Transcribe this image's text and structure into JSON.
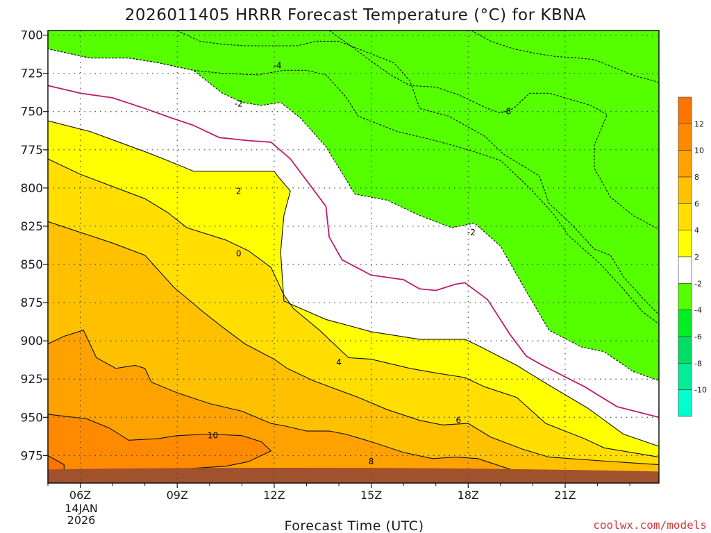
{
  "title": "2026011405 HRRR Forecast Temperature (°C) for KBNA",
  "credit": "coolwx.com/models",
  "chart_data": {
    "type": "filled-contour",
    "title": "2026011405 HRRR Forecast Temperature (°C) for KBNA",
    "xlabel": "Forecast Time (UTC)",
    "ylabel": "",
    "x_ticks": [
      "06Z",
      "09Z",
      "12Z",
      "15Z",
      "18Z",
      "21Z"
    ],
    "x_tick_hours": [
      6,
      9,
      12,
      15,
      18,
      21
    ],
    "x_date_lines": [
      "14JAN",
      "2026"
    ],
    "xlim": [
      5,
      23.9
    ],
    "y_ticks": [
      700,
      725,
      750,
      775,
      800,
      825,
      850,
      875,
      900,
      925,
      950,
      975
    ],
    "ylim": [
      993,
      697
    ],
    "surface_pressure": 985,
    "grid": true,
    "colorbar": {
      "labels": [
        "12",
        "10",
        "8",
        "6",
        "4",
        "2",
        "-2",
        "-4",
        "-6",
        "-8",
        "-10"
      ],
      "bands": [
        {
          "lo": 12,
          "hi": 14,
          "color": "#ff7300"
        },
        {
          "lo": 10,
          "hi": 12,
          "color": "#ff8a00"
        },
        {
          "lo": 8,
          "hi": 10,
          "color": "#ffa200"
        },
        {
          "lo": 6,
          "hi": 8,
          "color": "#ffc000"
        },
        {
          "lo": 4,
          "hi": 6,
          "color": "#ffde00"
        },
        {
          "lo": 2,
          "hi": 4,
          "color": "#ffff00"
        },
        {
          "lo": -2,
          "hi": 2,
          "color": "#ffffff"
        },
        {
          "lo": -4,
          "hi": -2,
          "color": "#55ff00"
        },
        {
          "lo": -6,
          "hi": -4,
          "color": "#00ee22"
        },
        {
          "lo": -8,
          "hi": -6,
          "color": "#00dd66"
        },
        {
          "lo": -10,
          "hi": -8,
          "color": "#00ee99"
        },
        {
          "lo": -12,
          "hi": -10,
          "color": "#00ffcc"
        }
      ]
    },
    "contours": [
      {
        "level": -10,
        "color": "#00ffcc",
        "points": [
          [
            18.1,
            697
          ],
          [
            18.7,
            704
          ],
          [
            19.4,
            709
          ],
          [
            20.1,
            712
          ],
          [
            20.7,
            714
          ],
          [
            21.4,
            715
          ],
          [
            21.9,
            716
          ],
          [
            22.6,
            722
          ],
          [
            23.2,
            727
          ],
          [
            23.6,
            729
          ],
          [
            23.9,
            731
          ],
          [
            23.9,
            697
          ]
        ]
      },
      {
        "level": -8,
        "color": "#00ee99",
        "points": [
          [
            13.7,
            697
          ],
          [
            14.3,
            706
          ],
          [
            15,
            717
          ],
          [
            15.6,
            726
          ],
          [
            16.2,
            733
          ],
          [
            17,
            734
          ],
          [
            17.7,
            739
          ],
          [
            18.6,
            748
          ],
          [
            19,
            751
          ],
          [
            19.4,
            748
          ],
          [
            19.9,
            738
          ],
          [
            20.5,
            738
          ],
          [
            21.3,
            743
          ],
          [
            21.8,
            746
          ],
          [
            22.3,
            752
          ],
          [
            21.9,
            772
          ],
          [
            21.9,
            787
          ],
          [
            22.4,
            806
          ],
          [
            23.1,
            818
          ],
          [
            23.9,
            827
          ],
          [
            23.9,
            697
          ]
        ]
      },
      {
        "level": -6,
        "color": "#00dd66",
        "points": [
          [
            9,
            697
          ],
          [
            9.7,
            704
          ],
          [
            10.4,
            706
          ],
          [
            11.1,
            707
          ],
          [
            11.9,
            707
          ],
          [
            12.7,
            707
          ],
          [
            13.3,
            704
          ],
          [
            14,
            704
          ],
          [
            14.6,
            709
          ],
          [
            15.7,
            718
          ],
          [
            16.2,
            730
          ],
          [
            16.5,
            748
          ],
          [
            17.4,
            753
          ],
          [
            18.5,
            766
          ],
          [
            19.1,
            778
          ],
          [
            20.2,
            792
          ],
          [
            20.5,
            810
          ],
          [
            21.3,
            826
          ],
          [
            21.9,
            840
          ],
          [
            22.4,
            844
          ],
          [
            22.8,
            858
          ],
          [
            23.4,
            872
          ],
          [
            23.9,
            883
          ],
          [
            23.9,
            697
          ]
        ]
      },
      {
        "level": -4,
        "color": "#00ee22",
        "points": [
          [
            5,
            697
          ],
          [
            5,
            709
          ],
          [
            6.3,
            715
          ],
          [
            7.5,
            715
          ],
          [
            8.4,
            718
          ],
          [
            9.5,
            723
          ],
          [
            10.4,
            725
          ],
          [
            11.5,
            726
          ],
          [
            12.3,
            723
          ],
          [
            13,
            723
          ],
          [
            13.6,
            726
          ],
          [
            14.2,
            740
          ],
          [
            14.6,
            753
          ],
          [
            15.8,
            763
          ],
          [
            16.8,
            768
          ],
          [
            17.5,
            772
          ],
          [
            18,
            775
          ],
          [
            19,
            782
          ],
          [
            19.9,
            800
          ],
          [
            20.6,
            816
          ],
          [
            21.1,
            831
          ],
          [
            22.1,
            850
          ],
          [
            22.8,
            866
          ],
          [
            23.4,
            881
          ],
          [
            23.9,
            889
          ],
          [
            23.9,
            697
          ]
        ]
      },
      {
        "level": -2,
        "color": "#55ff00",
        "points": [
          [
            5,
            697
          ],
          [
            5,
            709
          ],
          [
            6.3,
            715
          ],
          [
            7.5,
            715
          ],
          [
            8.4,
            718
          ],
          [
            9.5,
            723
          ],
          [
            10.4,
            738
          ],
          [
            11,
            744
          ],
          [
            11.6,
            746
          ],
          [
            12.2,
            744
          ],
          [
            12.8,
            754
          ],
          [
            13.6,
            773
          ],
          [
            14.5,
            804
          ],
          [
            15.5,
            808
          ],
          [
            16.5,
            818
          ],
          [
            17.5,
            826
          ],
          [
            18.2,
            823
          ],
          [
            19,
            838
          ],
          [
            19.7,
            864
          ],
          [
            20.5,
            893
          ],
          [
            21.5,
            904
          ],
          [
            22.2,
            907
          ],
          [
            23.1,
            920
          ],
          [
            23.9,
            926
          ],
          [
            23.9,
            697
          ]
        ]
      },
      {
        "level": 2,
        "color": "#ffff00",
        "points": [
          [
            5,
            756
          ],
          [
            6.3,
            763
          ],
          [
            7.2,
            770
          ],
          [
            8.1,
            777
          ],
          [
            8.7,
            782
          ],
          [
            9.5,
            789
          ],
          [
            10.7,
            789
          ],
          [
            12,
            789
          ],
          [
            12.1,
            792
          ],
          [
            12.5,
            802
          ],
          [
            12.3,
            818
          ],
          [
            12.2,
            842
          ],
          [
            12.3,
            874
          ],
          [
            13.6,
            886
          ],
          [
            15,
            894
          ],
          [
            16.5,
            899
          ],
          [
            17.9,
            899
          ],
          [
            18.3,
            903
          ],
          [
            19.5,
            916
          ],
          [
            20.5,
            929
          ],
          [
            21.7,
            944
          ],
          [
            22.8,
            961
          ],
          [
            23.9,
            969
          ],
          [
            23.9,
            993
          ],
          [
            5,
            993
          ]
        ]
      },
      {
        "level": 4,
        "color": "#ffde00",
        "points": [
          [
            5,
            781
          ],
          [
            6,
            791
          ],
          [
            7,
            799
          ],
          [
            8,
            807
          ],
          [
            8.7,
            816
          ],
          [
            9.3,
            826
          ],
          [
            10.5,
            834
          ],
          [
            11.2,
            841
          ],
          [
            11.9,
            852
          ],
          [
            12.3,
            870
          ],
          [
            12.6,
            879
          ],
          [
            13.4,
            893
          ],
          [
            14.3,
            911
          ],
          [
            15,
            912
          ],
          [
            16.2,
            918
          ],
          [
            17,
            921
          ],
          [
            17.9,
            924
          ],
          [
            18.5,
            930
          ],
          [
            19.5,
            937
          ],
          [
            20.4,
            954
          ],
          [
            21.6,
            964
          ],
          [
            22.2,
            970
          ],
          [
            23.9,
            976
          ],
          [
            23.9,
            993
          ],
          [
            5,
            993
          ]
        ]
      },
      {
        "level": 6,
        "color": "#ffc000",
        "points": [
          [
            5,
            822
          ],
          [
            6,
            829
          ],
          [
            7,
            836
          ],
          [
            8,
            844
          ],
          [
            8.9,
            865
          ],
          [
            9.8,
            881
          ],
          [
            10.4,
            891
          ],
          [
            11.1,
            902
          ],
          [
            12,
            912
          ],
          [
            12.4,
            918
          ],
          [
            13.2,
            926
          ],
          [
            14.6,
            937
          ],
          [
            15.5,
            945
          ],
          [
            16.5,
            952
          ],
          [
            17.2,
            955
          ],
          [
            18,
            954
          ],
          [
            18.7,
            963
          ],
          [
            19.7,
            971
          ],
          [
            20.5,
            976
          ],
          [
            21.8,
            978
          ],
          [
            23.9,
            981
          ],
          [
            23.9,
            993
          ],
          [
            5,
            993
          ]
        ]
      },
      {
        "level": 8,
        "color": "#ffa200",
        "points": [
          [
            5,
            902
          ],
          [
            5.5,
            897
          ],
          [
            6.1,
            893
          ],
          [
            6.5,
            911
          ],
          [
            7.1,
            918
          ],
          [
            7.7,
            916
          ],
          [
            8,
            918
          ],
          [
            8.2,
            927
          ],
          [
            9,
            934
          ],
          [
            10,
            941
          ],
          [
            11,
            946
          ],
          [
            11.9,
            954
          ],
          [
            12.4,
            956
          ],
          [
            13,
            959
          ],
          [
            13.7,
            959
          ],
          [
            14.2,
            961
          ],
          [
            15,
            966
          ],
          [
            16,
            973
          ],
          [
            16.9,
            977
          ],
          [
            17.6,
            976
          ],
          [
            18.3,
            977
          ],
          [
            19.3,
            984
          ],
          [
            20.2,
            988
          ],
          [
            23.9,
            992
          ],
          [
            23.9,
            993
          ],
          [
            5,
            993
          ]
        ]
      },
      {
        "level": 10,
        "color": "#ff8a00",
        "points": [
          [
            5,
            948
          ],
          [
            6.2,
            951
          ],
          [
            6.9,
            957
          ],
          [
            7.5,
            965
          ],
          [
            8.4,
            964
          ],
          [
            9,
            962
          ],
          [
            10,
            961
          ],
          [
            11,
            962
          ],
          [
            11.6,
            966
          ],
          [
            11.9,
            972
          ],
          [
            11.2,
            979
          ],
          [
            10.5,
            982
          ],
          [
            9,
            984
          ],
          [
            8.4,
            986
          ],
          [
            7.6,
            988
          ],
          [
            6.8,
            991
          ],
          [
            5,
            993
          ]
        ]
      },
      {
        "level": 12,
        "color": "#ff7300",
        "points": [
          [
            5,
            975
          ],
          [
            5.5,
            981
          ],
          [
            5.5,
            987
          ],
          [
            5,
            989
          ]
        ]
      }
    ],
    "zero_line": [
      [
        5,
        733
      ],
      [
        6,
        738
      ],
      [
        7,
        741
      ],
      [
        8,
        748
      ],
      [
        8.8,
        754
      ],
      [
        9.5,
        759
      ],
      [
        10.3,
        767
      ],
      [
        11.2,
        769
      ],
      [
        11.9,
        770
      ],
      [
        12.5,
        781
      ],
      [
        13,
        795
      ],
      [
        13.6,
        812
      ],
      [
        13.7,
        832
      ],
      [
        14.1,
        847
      ],
      [
        15,
        857
      ],
      [
        16,
        860
      ],
      [
        16.5,
        866
      ],
      [
        17,
        867
      ],
      [
        17.6,
        863
      ],
      [
        17.9,
        862
      ],
      [
        18.6,
        873
      ],
      [
        19.3,
        896
      ],
      [
        19.8,
        910
      ],
      [
        20.3,
        916
      ],
      [
        21.6,
        930
      ],
      [
        22.6,
        943
      ],
      [
        23.9,
        950
      ]
    ],
    "annotations": [
      {
        "text": "-4",
        "x": 12.1,
        "y": 720
      },
      {
        "text": "-2",
        "x": 10.9,
        "y": 745
      },
      {
        "text": "-8",
        "x": 19.2,
        "y": 750
      },
      {
        "text": "2",
        "x": 10.9,
        "y": 802
      },
      {
        "text": "0",
        "x": 10.9,
        "y": 843
      },
      {
        "text": "-2",
        "x": 18.1,
        "y": 829
      },
      {
        "text": "4",
        "x": 14,
        "y": 914
      },
      {
        "text": "6",
        "x": 17.7,
        "y": 952
      },
      {
        "text": "10",
        "x": 10.1,
        "y": 962
      },
      {
        "text": "8",
        "x": 15,
        "y": 979
      }
    ]
  }
}
